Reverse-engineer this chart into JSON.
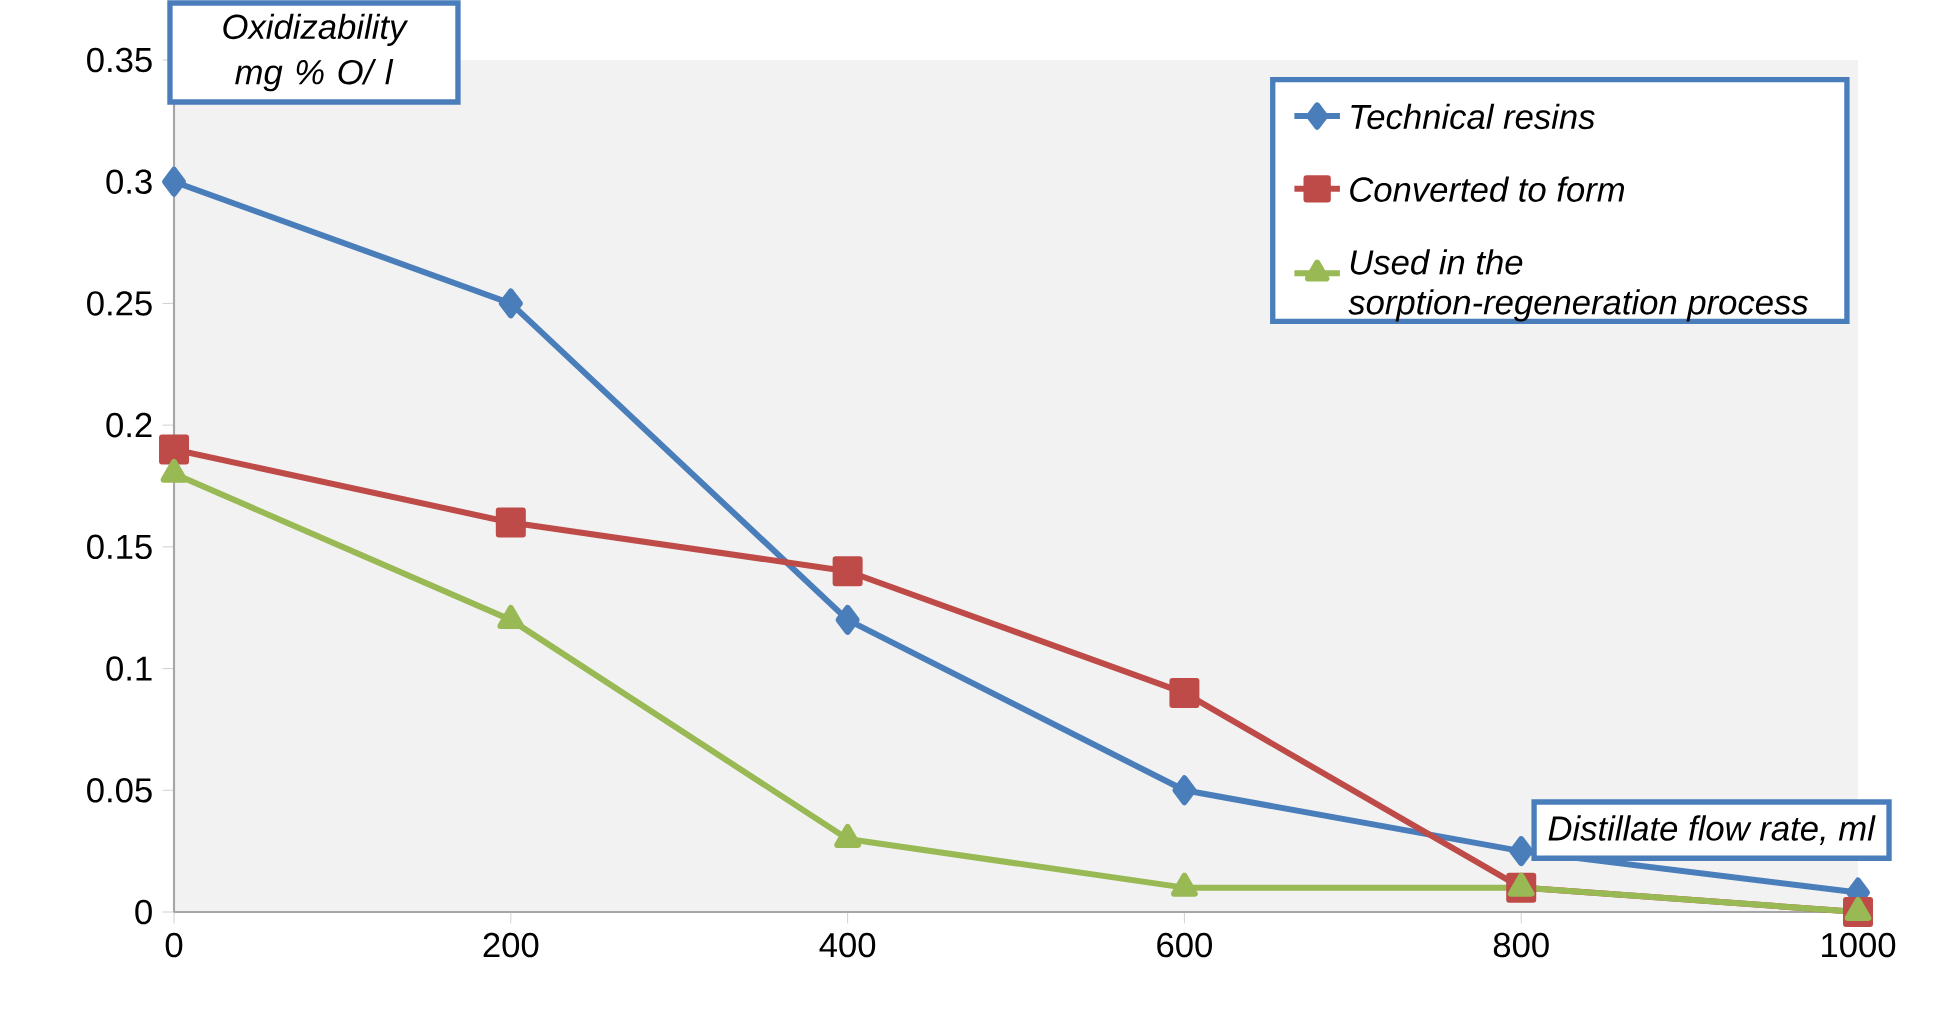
{
  "chart_data": {
    "type": "line",
    "xlabel": "*Distillate flow rate, ml*",
    "ylabel": "*Oxidizability mg % O/ l*",
    "x": [
      0,
      200,
      400,
      600,
      800,
      1000
    ],
    "series": [
      {
        "name": "*Technical resins*",
        "color": "#4a7ebb",
        "marker": "diamond",
        "values": [
          0.3,
          0.25,
          0.12,
          0.05,
          0.025,
          0.008
        ]
      },
      {
        "name": "*Converted to form*",
        "color": "#be4b48",
        "marker": "square",
        "values": [
          0.19,
          0.16,
          0.14,
          0.09,
          0.01,
          0.0
        ]
      },
      {
        "name": "*Used in the sorption-regeneration process*",
        "color": "#98b954",
        "marker": "triangle",
        "values": [
          0.18,
          0.12,
          0.03,
          0.01,
          0.01,
          0.0
        ]
      }
    ],
    "xlim": [
      0,
      1000
    ],
    "xticks": [
      0,
      200,
      400,
      600,
      800,
      1000
    ],
    "ylim": [
      0,
      0.35
    ],
    "yticks": [
      0,
      0.05,
      0.1,
      0.15,
      0.2,
      0.25,
      0.3,
      0.35
    ],
    "grid": false,
    "legend": "top right"
  }
}
